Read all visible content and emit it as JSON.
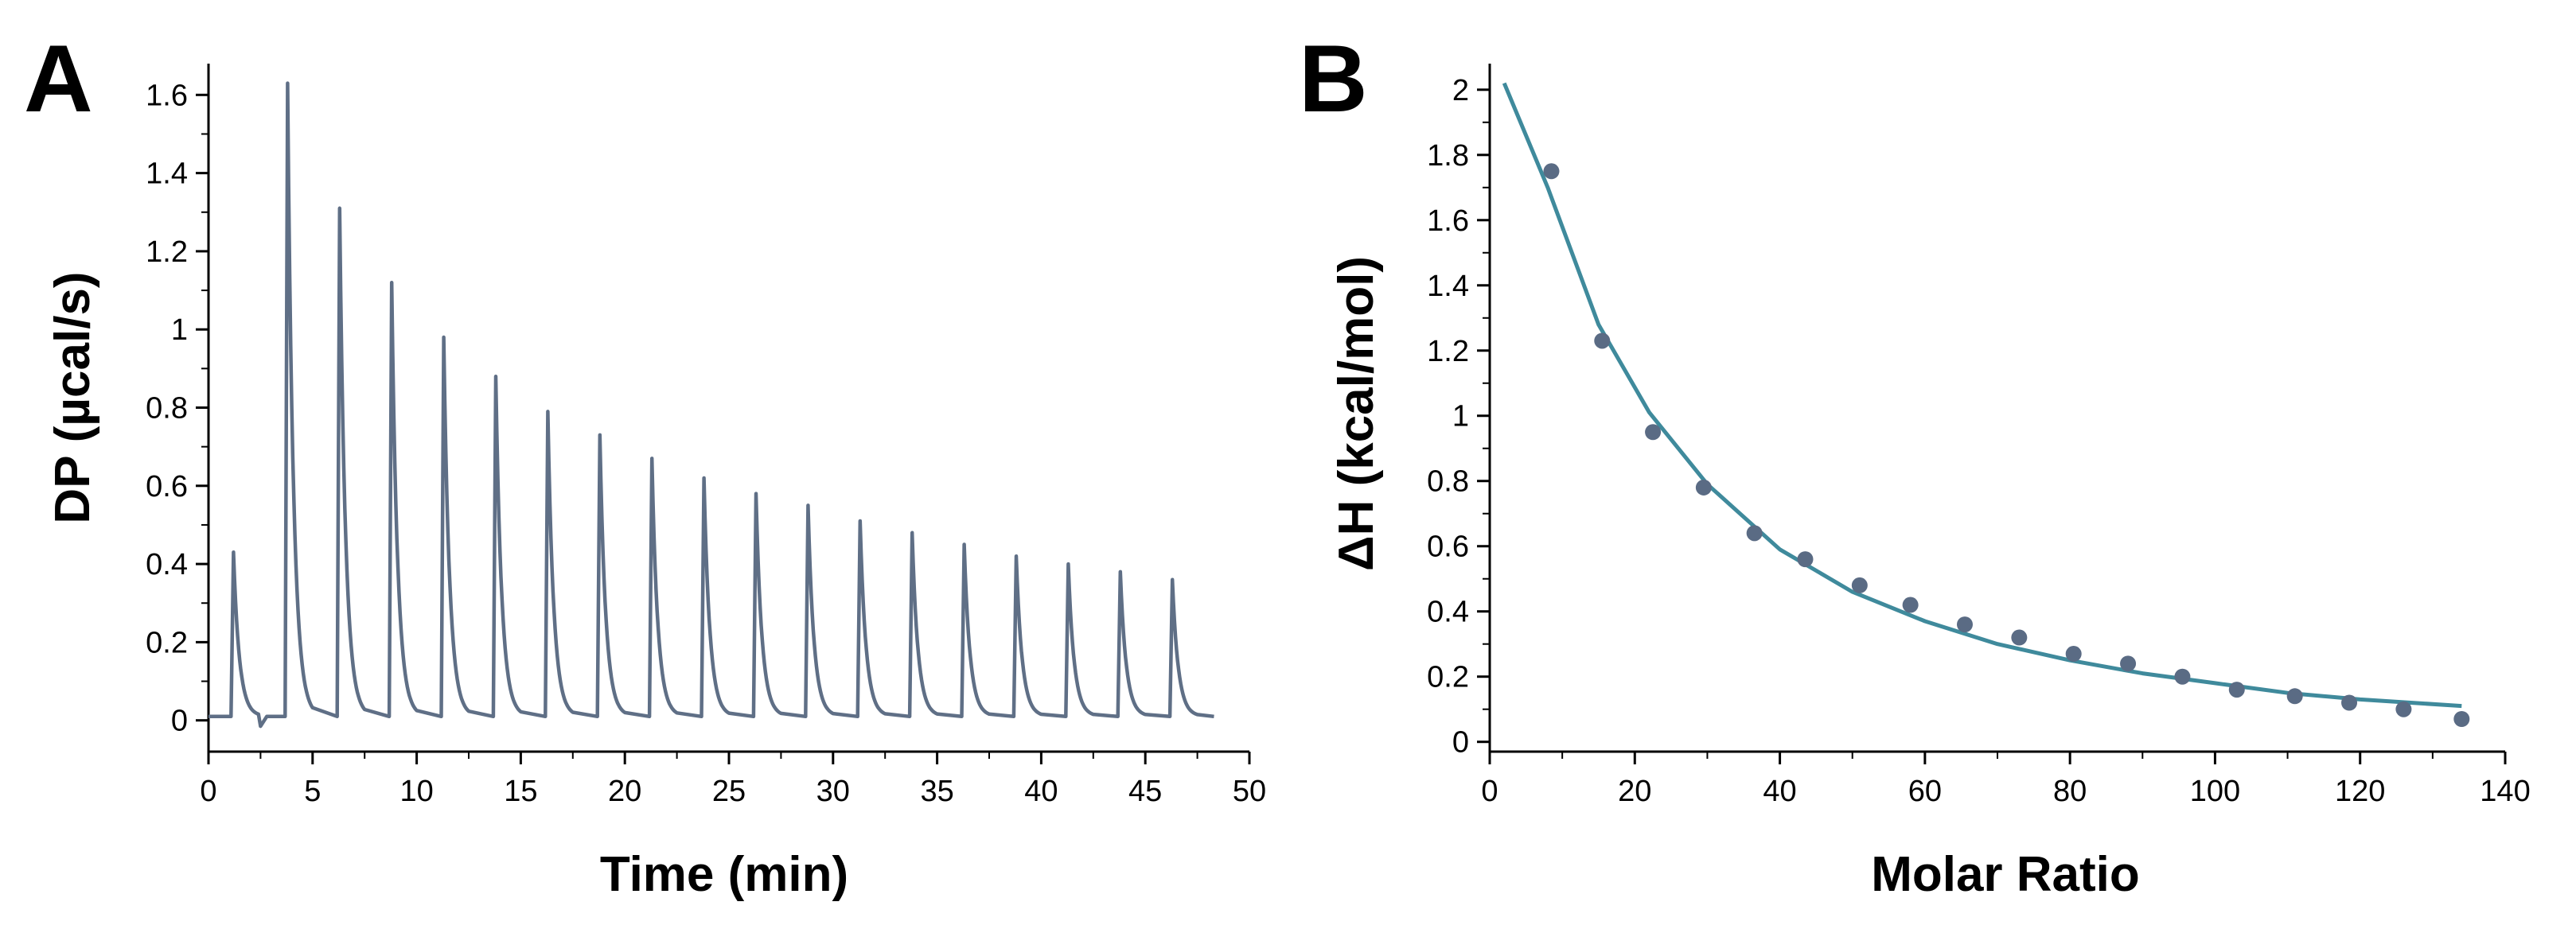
{
  "colors": {
    "trace": "#5f6f86",
    "fit": "#3f8a9c",
    "points": "#5a6b84",
    "axis": "#000000"
  },
  "chart_data": [
    {
      "panel": "A",
      "type": "line",
      "title": "",
      "xlabel": "Time (min)",
      "ylabel": "DP (µcal/s)",
      "xlim": [
        0,
        50
      ],
      "ylim": [
        -0.08,
        1.68
      ],
      "xticks": [
        0,
        5,
        10,
        15,
        20,
        25,
        30,
        35,
        40,
        45,
        50
      ],
      "xtick_labels": [
        "0",
        "5",
        "10",
        "15",
        "20",
        "25",
        "30",
        "35",
        "40",
        "45",
        "50"
      ],
      "yticks": [
        0,
        0.2,
        0.4,
        0.6,
        0.8,
        1.0,
        1.2,
        1.4,
        1.6
      ],
      "ytick_labels": [
        "0",
        "0.2",
        "0.4",
        "0.6",
        "0.8",
        "1",
        "1.2",
        "1.4",
        "1.6"
      ],
      "baseline": 0.01,
      "x_end": 48.3,
      "series": [
        {
          "name": "DP trace",
          "peak_times": [
            1.2,
            3.8,
            6.3,
            8.8,
            11.3,
            13.8,
            16.3,
            18.8,
            21.3,
            23.8,
            26.3,
            28.8,
            31.3,
            33.8,
            36.3,
            38.8,
            41.3,
            43.8,
            46.3
          ],
          "peak_heights": [
            0.43,
            1.63,
            1.31,
            1.12,
            0.98,
            0.88,
            0.79,
            0.73,
            0.67,
            0.62,
            0.58,
            0.55,
            0.51,
            0.48,
            0.45,
            0.42,
            0.4,
            0.38,
            0.36
          ]
        }
      ]
    },
    {
      "panel": "B",
      "type": "scatter",
      "title": "",
      "xlabel": "Molar Ratio",
      "ylabel": "ΔH (kcal/mol)",
      "xlim": [
        0,
        140
      ],
      "ylim": [
        -0.03,
        2.08
      ],
      "xticks": [
        0,
        20,
        40,
        60,
        80,
        100,
        120,
        140
      ],
      "xtick_labels": [
        "0",
        "20",
        "40",
        "60",
        "80",
        "100",
        "120",
        "140"
      ],
      "yticks": [
        0,
        0.2,
        0.4,
        0.6,
        0.8,
        1.0,
        1.2,
        1.4,
        1.6,
        1.8,
        2.0
      ],
      "ytick_labels": [
        "0",
        "0.2",
        "0.4",
        "0.6",
        "0.8",
        "1",
        "1.2",
        "1.4",
        "1.6",
        "1.8",
        "2"
      ],
      "series": [
        {
          "name": "Data points",
          "x": [
            8.5,
            15.5,
            22.5,
            29.5,
            36.5,
            43.5,
            51,
            58,
            65.5,
            73,
            80.5,
            88,
            95.5,
            103,
            111,
            118.5,
            126,
            134
          ],
          "y": [
            1.75,
            1.23,
            0.95,
            0.78,
            0.64,
            0.56,
            0.48,
            0.42,
            0.36,
            0.32,
            0.27,
            0.24,
            0.2,
            0.16,
            0.14,
            0.12,
            0.1,
            0.07
          ]
        },
        {
          "name": "Fit",
          "x": [
            2,
            8,
            15,
            22,
            30,
            40,
            50,
            60,
            70,
            80,
            90,
            100,
            110,
            120,
            134
          ],
          "y": [
            2.02,
            1.7,
            1.28,
            1.01,
            0.79,
            0.59,
            0.46,
            0.37,
            0.3,
            0.25,
            0.21,
            0.18,
            0.15,
            0.13,
            0.11
          ]
        }
      ]
    }
  ]
}
